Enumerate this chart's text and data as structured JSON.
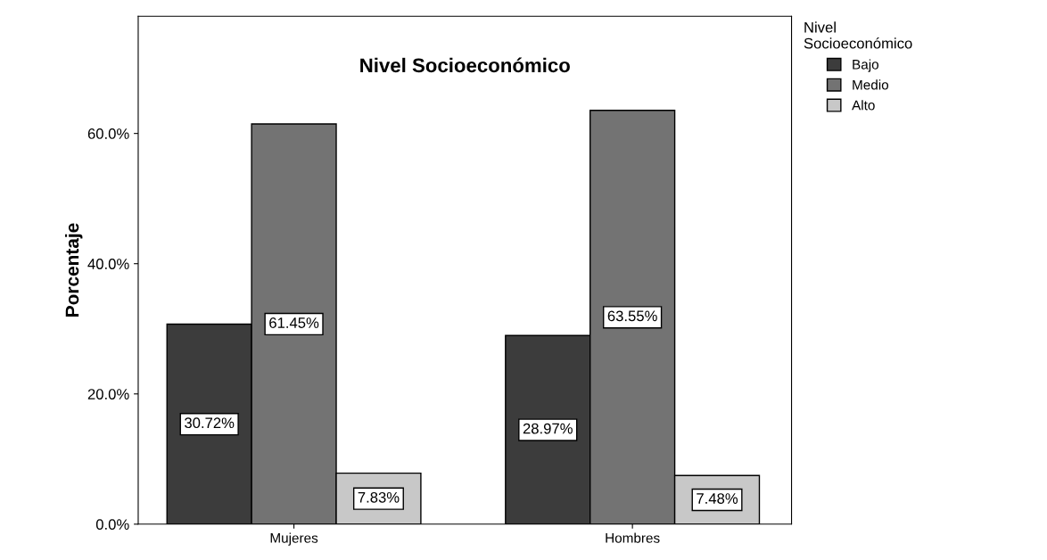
{
  "chart_data": {
    "type": "bar",
    "title": "Nivel Socioeconómico",
    "ylabel": "Porcentaje",
    "legend_title": "Nivel\nSocioeconómico",
    "categories": [
      "Mujeres",
      "Hombres"
    ],
    "series": [
      {
        "name": "Bajo",
        "color": "#3c3c3c",
        "values": [
          30.72,
          28.97
        ],
        "value_labels": [
          "30.72%",
          "28.97%"
        ]
      },
      {
        "name": "Medio",
        "color": "#737373",
        "values": [
          61.45,
          63.55
        ],
        "value_labels": [
          "61.45%",
          "63.55%"
        ]
      },
      {
        "name": "Alto",
        "color": "#c8c8c8",
        "values": [
          7.83,
          7.48
        ],
        "value_labels": [
          "7.83%",
          "7.48%"
        ]
      }
    ],
    "ylim": [
      0,
      78
    ],
    "yticks": [
      {
        "value": 0,
        "label": "0.0%"
      },
      {
        "value": 20,
        "label": "20.0%"
      },
      {
        "value": 40,
        "label": "40.0%"
      },
      {
        "value": 60,
        "label": "60.0%"
      }
    ],
    "grid": false,
    "legend": "right"
  }
}
